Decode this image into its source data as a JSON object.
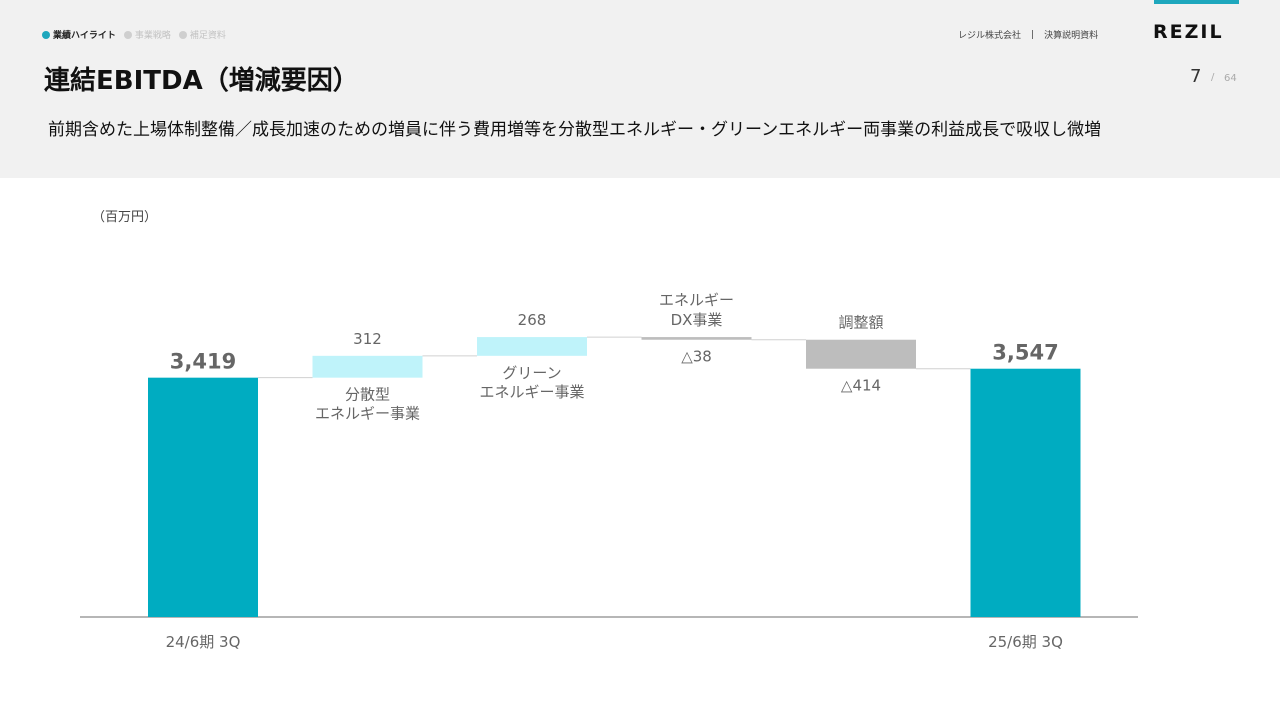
{
  "nav": {
    "items": [
      {
        "label": "業績ハイライト",
        "active": true
      },
      {
        "label": "事業戦略",
        "active": false
      },
      {
        "label": "補足資料",
        "active": false
      }
    ]
  },
  "company": {
    "name": "レジル株式会社",
    "sep": "|",
    "doc": "決算説明資料"
  },
  "logo": "REZIL",
  "page": {
    "current": "7",
    "sep": "/",
    "total": "64"
  },
  "title": "連結EBITDA（増減要因）",
  "subtitle": "前期含めた上場体制整備／成長加速のための増員に伴う費用増等を分散型エネルギー・グリーンエネルギー両事業の利益成長で吸収し微増",
  "unit_label": "（百万円）",
  "colors": {
    "total": "#00acc1",
    "increase": "#bff3fa",
    "decrease": "#bdbdbd",
    "accent": "#1ea7bd"
  },
  "chart_data": {
    "type": "bar",
    "subtype": "waterfall",
    "ylim": [
      0,
      4000
    ],
    "steps": [
      {
        "kind": "total",
        "value": 3419,
        "label": "3,419",
        "axis_label": "24/6期 3Q",
        "category": []
      },
      {
        "kind": "increase",
        "value": 312,
        "label": "312",
        "axis_label": "",
        "category": [
          "分散型",
          "エネルギー事業"
        ]
      },
      {
        "kind": "increase",
        "value": 268,
        "label": "268",
        "axis_label": "",
        "category": [
          "グリーン",
          "エネルギー事業"
        ]
      },
      {
        "kind": "decrease",
        "value": -38,
        "label": "△38",
        "axis_label": "",
        "category": [
          "エネルギー",
          "DX事業"
        ]
      },
      {
        "kind": "decrease",
        "value": -414,
        "label": "△414",
        "axis_label": "",
        "category": [
          "調整額"
        ]
      },
      {
        "kind": "total",
        "value": 3547,
        "label": "3,547",
        "axis_label": "25/6期 3Q",
        "category": []
      }
    ]
  }
}
